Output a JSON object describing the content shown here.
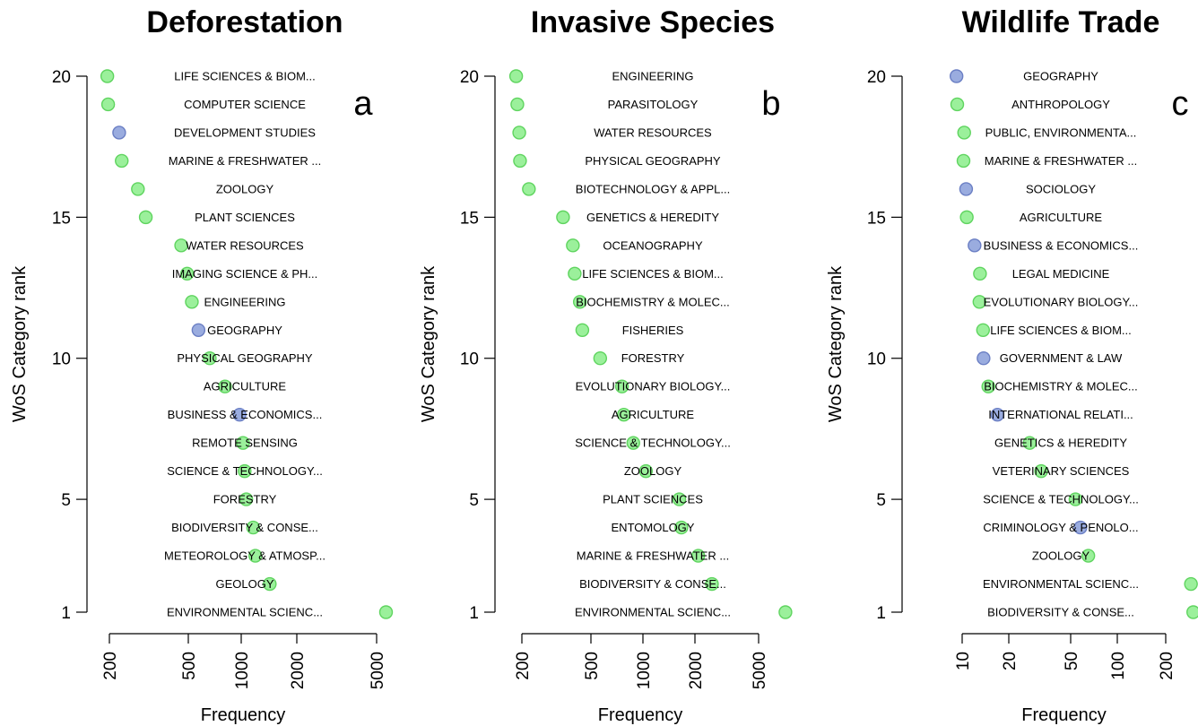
{
  "chart_data": [
    {
      "type": "scatter",
      "title": "Deforestation",
      "panel_letter": "a",
      "xlabel": "Frequency",
      "ylabel": "WoS Category rank",
      "x_scale": "log",
      "xlim": [
        190,
        6000
      ],
      "xticks": [
        200,
        500,
        1000,
        2000,
        5000
      ],
      "yticks": [
        1,
        5,
        10,
        15,
        20
      ],
      "legend_colors": {
        "green": "#90ee90",
        "blue": "#8fa3dc"
      },
      "points": [
        {
          "rank": 20,
          "category": "LIFE SCIENCES & BIOM...",
          "frequency": 195,
          "color": "green"
        },
        {
          "rank": 19,
          "category": "COMPUTER SCIENCE",
          "frequency": 197,
          "color": "green"
        },
        {
          "rank": 18,
          "category": "DEVELOPMENT STUDIES",
          "frequency": 225,
          "color": "blue"
        },
        {
          "rank": 17,
          "category": "MARINE & FRESHWATER ...",
          "frequency": 232,
          "color": "green"
        },
        {
          "rank": 16,
          "category": "ZOOLOGY",
          "frequency": 282,
          "color": "green"
        },
        {
          "rank": 15,
          "category": "PLANT SCIENCES",
          "frequency": 310,
          "color": "green"
        },
        {
          "rank": 14,
          "category": "WATER RESOURCES",
          "frequency": 475,
          "color": "green"
        },
        {
          "rank": 13,
          "category": "IMAGING SCIENCE & PH...",
          "frequency": 510,
          "color": "green"
        },
        {
          "rank": 12,
          "category": "ENGINEERING",
          "frequency": 540,
          "color": "green"
        },
        {
          "rank": 11,
          "category": "GEOGRAPHY",
          "frequency": 585,
          "color": "blue"
        },
        {
          "rank": 10,
          "category": "PHYSICAL GEOGRAPHY",
          "frequency": 670,
          "color": "green"
        },
        {
          "rank": 9,
          "category": "AGRICULTURE",
          "frequency": 805,
          "color": "green"
        },
        {
          "rank": 8,
          "category": "BUSINESS & ECONOMICS...",
          "frequency": 960,
          "color": "blue"
        },
        {
          "rank": 7,
          "category": "REMOTE SENSING",
          "frequency": 1000,
          "color": "green"
        },
        {
          "rank": 6,
          "category": "SCIENCE & TECHNOLOGY...",
          "frequency": 1020,
          "color": "green"
        },
        {
          "rank": 5,
          "category": "FORESTRY",
          "frequency": 1040,
          "color": "green"
        },
        {
          "rank": 4,
          "category": "BIODIVERSITY & CONSE...",
          "frequency": 1130,
          "color": "green"
        },
        {
          "rank": 3,
          "category": "METEOROLOGY & ATMOSP...",
          "frequency": 1160,
          "color": "green"
        },
        {
          "rank": 2,
          "category": "GEOLOGY",
          "frequency": 1380,
          "color": "green"
        },
        {
          "rank": 1,
          "category": "ENVIRONMENTAL SCIENC...",
          "frequency": 5600,
          "color": "green"
        }
      ]
    },
    {
      "type": "scatter",
      "title": "Invasive Species",
      "panel_letter": "b",
      "xlabel": "Frequency",
      "ylabel": "WoS Category rank",
      "x_scale": "log",
      "xlim": [
        190,
        8500
      ],
      "xticks": [
        200,
        500,
        1000,
        2000,
        5000
      ],
      "yticks": [
        1,
        5,
        10,
        15,
        20
      ],
      "points": [
        {
          "rank": 20,
          "category": "ENGINEERING",
          "frequency": 185,
          "color": "green"
        },
        {
          "rank": 19,
          "category": "PARASITOLOGY",
          "frequency": 188,
          "color": "green"
        },
        {
          "rank": 18,
          "category": "WATER RESOURCES",
          "frequency": 193,
          "color": "green"
        },
        {
          "rank": 17,
          "category": "PHYSICAL GEOGRAPHY",
          "frequency": 195,
          "color": "green"
        },
        {
          "rank": 16,
          "category": "BIOTECHNOLOGY & APPL...",
          "frequency": 220,
          "color": "green"
        },
        {
          "rank": 15,
          "category": "GENETICS & HEREDITY",
          "frequency": 350,
          "color": "green"
        },
        {
          "rank": 14,
          "category": "OCEANOGRAPHY",
          "frequency": 400,
          "color": "green"
        },
        {
          "rank": 13,
          "category": "LIFE SCIENCES & BIOM...",
          "frequency": 410,
          "color": "green"
        },
        {
          "rank": 12,
          "category": "BIOCHEMISTRY & MOLEC...",
          "frequency": 440,
          "color": "green"
        },
        {
          "rank": 11,
          "category": "FISHERIES",
          "frequency": 455,
          "color": "green"
        },
        {
          "rank": 10,
          "category": "FORESTRY",
          "frequency": 580,
          "color": "green"
        },
        {
          "rank": 9,
          "category": "EVOLUTIONARY BIOLOGY...",
          "frequency": 780,
          "color": "green"
        },
        {
          "rank": 8,
          "category": "AGRICULTURE",
          "frequency": 800,
          "color": "green"
        },
        {
          "rank": 7,
          "category": "SCIENCE & TECHNOLOGY...",
          "frequency": 910,
          "color": "green"
        },
        {
          "rank": 6,
          "category": "ZOOLOGY",
          "frequency": 1080,
          "color": "green"
        },
        {
          "rank": 5,
          "category": "PLANT SCIENCES",
          "frequency": 1700,
          "color": "green"
        },
        {
          "rank": 4,
          "category": "ENTOMOLOGY",
          "frequency": 1750,
          "color": "green"
        },
        {
          "rank": 3,
          "category": "MARINE & FRESHWATER ...",
          "frequency": 2200,
          "color": "green"
        },
        {
          "rank": 2,
          "category": "BIODIVERSITY & CONSE...",
          "frequency": 2650,
          "color": "green"
        },
        {
          "rank": 1,
          "category": "ENVIRONMENTAL SCIENC...",
          "frequency": 7200,
          "color": "green"
        }
      ]
    },
    {
      "type": "scatter",
      "title": "Wildlife Trade",
      "panel_letter": "c",
      "xlabel": "Frequency",
      "ylabel": "WoS Category rank",
      "x_scale": "log",
      "xlim": [
        9,
        310
      ],
      "xticks": [
        10,
        20,
        50,
        100,
        200
      ],
      "yticks": [
        1,
        5,
        10,
        15,
        20
      ],
      "points": [
        {
          "rank": 20,
          "category": "GEOGRAPHY",
          "frequency": 9.2,
          "color": "blue"
        },
        {
          "rank": 19,
          "category": "ANTHROPOLOGY",
          "frequency": 9.3,
          "color": "green"
        },
        {
          "rank": 18,
          "category": "PUBLIC, ENVIRONMENTA...",
          "frequency": 10.3,
          "color": "green"
        },
        {
          "rank": 17,
          "category": "MARINE & FRESHWATER ...",
          "frequency": 10.2,
          "color": "green"
        },
        {
          "rank": 16,
          "category": "SOCIOLOGY",
          "frequency": 10.6,
          "color": "blue"
        },
        {
          "rank": 15,
          "category": "AGRICULTURE",
          "frequency": 10.7,
          "color": "green"
        },
        {
          "rank": 14,
          "category": "BUSINESS & ECONOMICS...",
          "frequency": 12.0,
          "color": "blue"
        },
        {
          "rank": 13,
          "category": "LEGAL MEDICINE",
          "frequency": 13.0,
          "color": "green"
        },
        {
          "rank": 12,
          "category": "EVOLUTIONARY BIOLOGY...",
          "frequency": 12.9,
          "color": "green"
        },
        {
          "rank": 11,
          "category": "LIFE SCIENCES & BIOM...",
          "frequency": 13.6,
          "color": "green"
        },
        {
          "rank": 10,
          "category": "GOVERNMENT & LAW",
          "frequency": 13.7,
          "color": "blue"
        },
        {
          "rank": 9,
          "category": "BIOCHEMISTRY & MOLEC...",
          "frequency": 14.7,
          "color": "green"
        },
        {
          "rank": 8,
          "category": "INTERNATIONAL RELATI...",
          "frequency": 16.8,
          "color": "blue"
        },
        {
          "rank": 7,
          "category": "GENETICS & HEREDITY",
          "frequency": 27,
          "color": "green"
        },
        {
          "rank": 6,
          "category": "VETERINARY SCIENCES",
          "frequency": 32,
          "color": "green"
        },
        {
          "rank": 5,
          "category": "SCIENCE & TECHNOLOGY...",
          "frequency": 53,
          "color": "green"
        },
        {
          "rank": 4,
          "category": "CRIMINOLOGY & PENOLO...",
          "frequency": 57,
          "color": "blue"
        },
        {
          "rank": 3,
          "category": "ZOOLOGY",
          "frequency": 64,
          "color": "green"
        },
        {
          "rank": 2,
          "category": "ENVIRONMENTAL SCIENC...",
          "frequency": 290,
          "color": "green"
        },
        {
          "rank": 1,
          "category": "BIODIVERSITY & CONSE...",
          "frequency": 300,
          "color": "green"
        }
      ]
    }
  ]
}
